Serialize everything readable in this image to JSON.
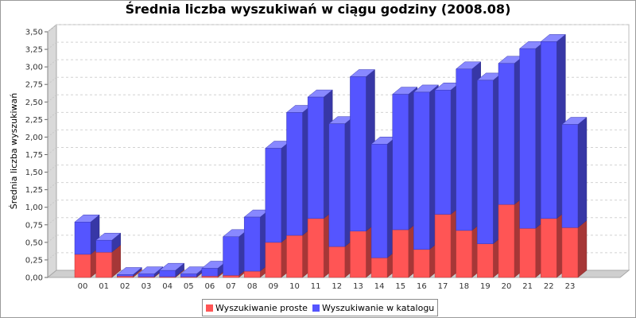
{
  "chart_data": {
    "type": "bar",
    "stacked": true,
    "style": "3d",
    "title": "Średnia liczba wyszukiwań w ciągu godziny (2008.08)",
    "xlabel": "",
    "ylabel": "Średnia liczba wyszukiwań",
    "ylim": [
      0,
      3.5
    ],
    "yticks": [
      "0,00",
      "0,25",
      "0,50",
      "0,75",
      "1,00",
      "1,25",
      "1,50",
      "1,75",
      "2,00",
      "2,25",
      "2,50",
      "2,75",
      "3,00",
      "3,25",
      "3,50"
    ],
    "categories": [
      "00",
      "01",
      "02",
      "03",
      "04",
      "05",
      "06",
      "07",
      "08",
      "09",
      "10",
      "11",
      "12",
      "13",
      "14",
      "15",
      "16",
      "17",
      "18",
      "19",
      "20",
      "21",
      "22",
      "23"
    ],
    "grid": true,
    "legend_position": "bottom",
    "series": [
      {
        "name": "Wyszukiwanie proste",
        "color": "#ff5555",
        "values": [
          0.33,
          0.36,
          0.02,
          0.01,
          0.01,
          0.01,
          0.02,
          0.03,
          0.09,
          0.5,
          0.6,
          0.84,
          0.44,
          0.66,
          0.28,
          0.68,
          0.4,
          0.9,
          0.67,
          0.48,
          1.04,
          0.7,
          0.84,
          0.71
        ]
      },
      {
        "name": "Wyszukiwanie w katalogu",
        "color": "#5555ff",
        "values": [
          0.46,
          0.17,
          0.02,
          0.04,
          0.09,
          0.04,
          0.11,
          0.55,
          0.77,
          1.34,
          1.75,
          1.73,
          1.75,
          2.2,
          1.62,
          1.93,
          2.24,
          1.77,
          2.3,
          2.33,
          2.01,
          2.56,
          2.52,
          1.47
        ]
      }
    ]
  }
}
